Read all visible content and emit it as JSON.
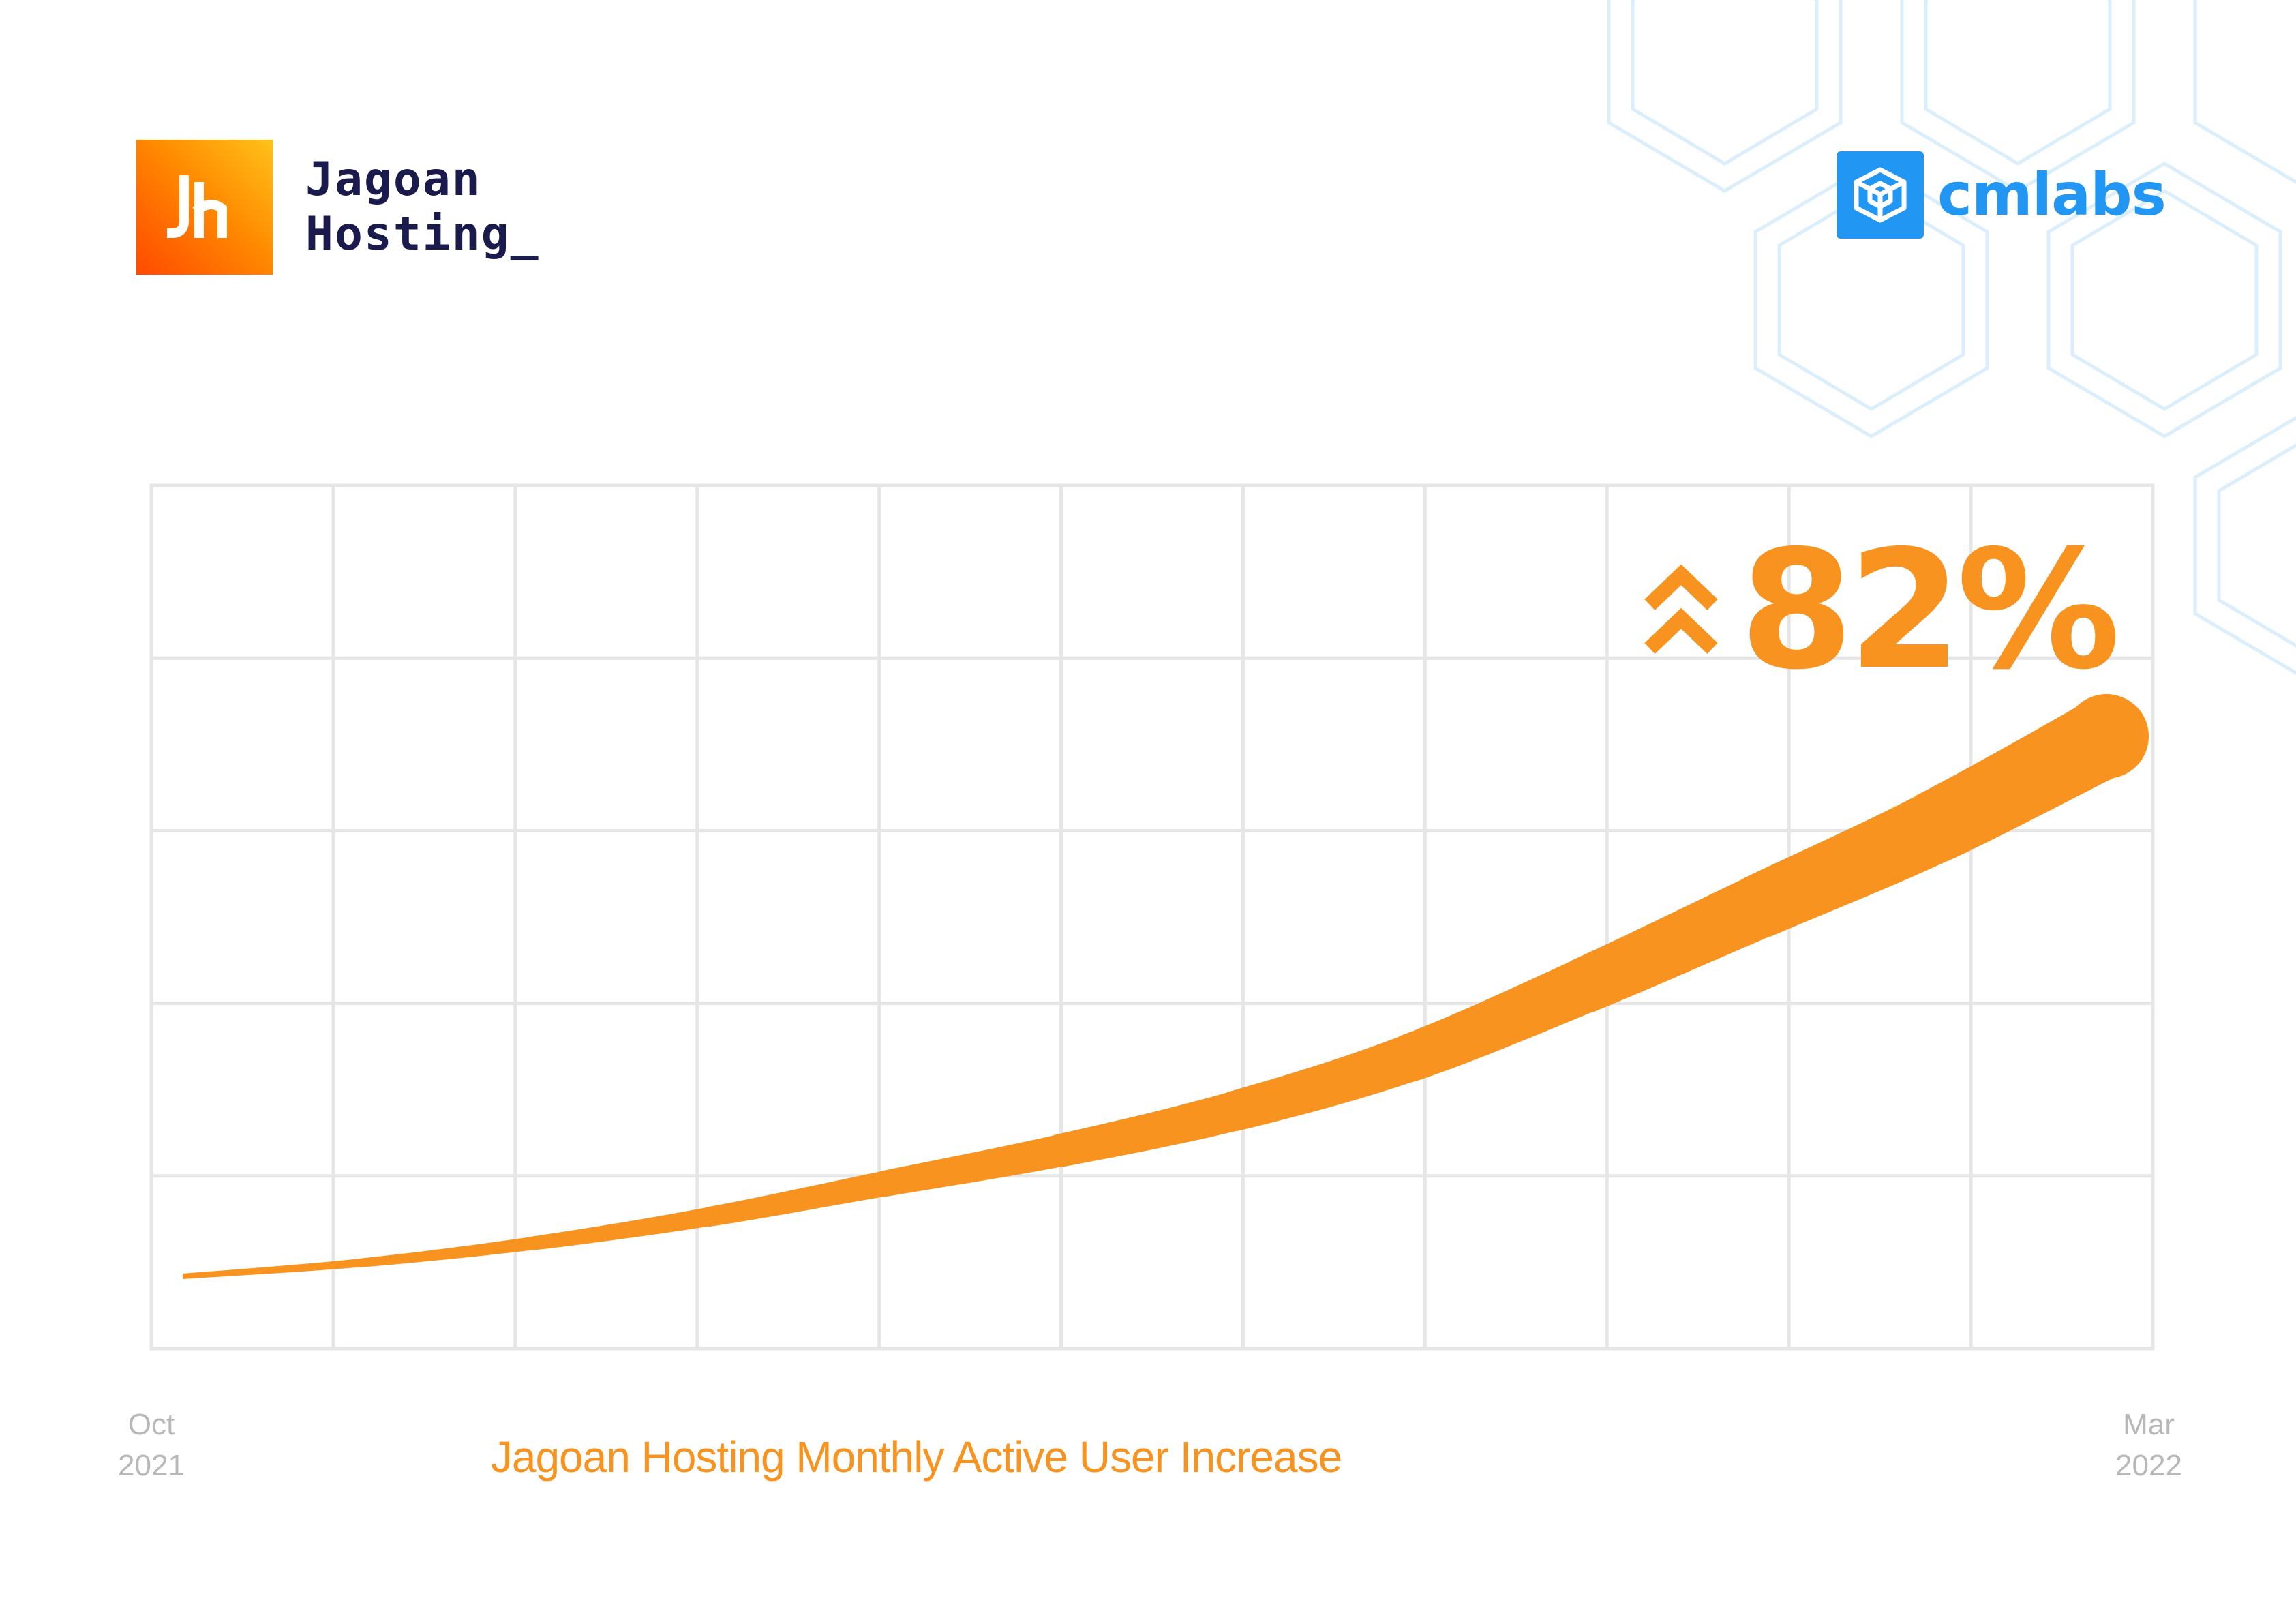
{
  "brand_left": {
    "name_line1": "Jagoan",
    "name_line2": "Hosting_",
    "icon": "jagoan-hosting-logo-icon"
  },
  "brand_right": {
    "name": "cmlabs",
    "icon": "cmlabs-cube-logo-icon"
  },
  "colors": {
    "accent": "#F7931E",
    "brand_blue": "#2196F3",
    "grid": "#E6E6E6",
    "axis_text": "#B8B8B8",
    "logo_text": "#1A1A4D"
  },
  "chart_data": {
    "type": "area",
    "title": "Jagoan Hosting Monthly Active User Increase",
    "xlabel": "",
    "ylabel": "",
    "x_start_label": [
      "Oct",
      "2021"
    ],
    "x_end_label": [
      "Mar",
      "2022"
    ],
    "grid": true,
    "annotation": {
      "text": "82%",
      "icon": "double-chevron-up-icon"
    },
    "series": [
      {
        "x": [
          0,
          1,
          2,
          3,
          4,
          5,
          6,
          7,
          8,
          9,
          10,
          11
        ],
        "values": [
          0,
          2,
          5,
          9,
          14,
          19,
          25,
          33,
          44,
          56,
          68,
          82
        ]
      }
    ],
    "ylim": [
      0,
      100
    ]
  }
}
